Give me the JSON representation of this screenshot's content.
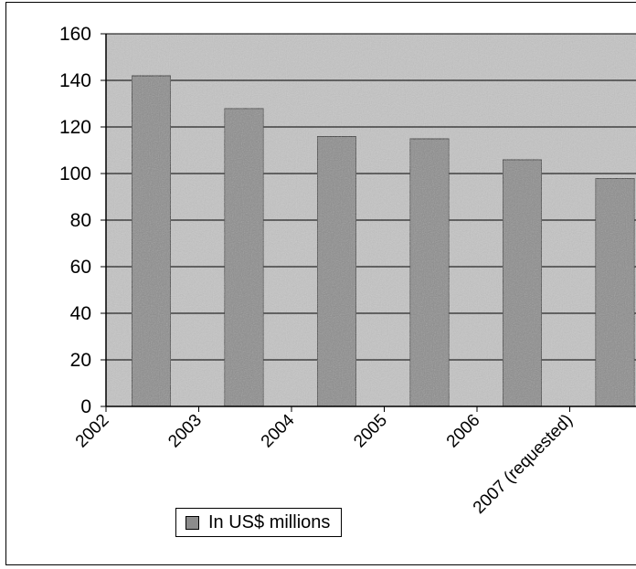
{
  "chart_data": {
    "type": "bar",
    "categories": [
      "2002",
      "2003",
      "2004",
      "2005",
      "2006",
      "2007 (requested)"
    ],
    "series": [
      {
        "name": "In US$ millions",
        "values": [
          142,
          128,
          116,
          115,
          106,
          98
        ]
      }
    ],
    "ylim": [
      0,
      160
    ],
    "yticks": [
      "0",
      "20",
      "40",
      "60",
      "80",
      "100",
      "120",
      "140",
      "160"
    ],
    "grid": true,
    "legend_position": "bottom-left",
    "colors": {
      "plot_background": "#c4c4c4",
      "bar": "#8c8c8c",
      "gridline": "#000000"
    }
  }
}
